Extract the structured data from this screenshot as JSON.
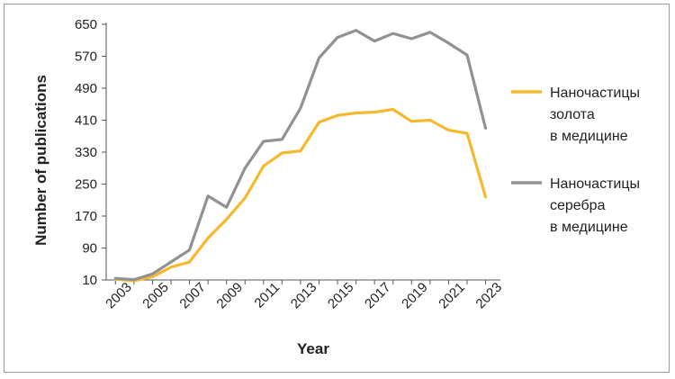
{
  "chart_data": {
    "type": "line",
    "title": "",
    "xlabel": "Year",
    "ylabel": "Number of publications",
    "x": [
      2003,
      2004,
      2005,
      2006,
      2007,
      2008,
      2009,
      2010,
      2011,
      2012,
      2013,
      2014,
      2015,
      2016,
      2017,
      2018,
      2019,
      2020,
      2021,
      2022,
      2023
    ],
    "x_tick_labels": [
      "2003",
      "2005",
      "2007",
      "2009",
      "2011",
      "2013",
      "2015",
      "2017",
      "2019",
      "2021",
      "2023"
    ],
    "y_ticks": [
      10,
      90,
      170,
      250,
      330,
      410,
      490,
      570,
      650
    ],
    "ylim": [
      10,
      650
    ],
    "xlim": [
      2002.5,
      2023.8
    ],
    "grid": false,
    "legend_position": "right",
    "series": [
      {
        "name": "Наночастицы золота в медицине",
        "legend_lines": [
          "Наночастицы",
          "золота",
          "в медицине"
        ],
        "color": "#f5b82e",
        "values": [
          12,
          8,
          18,
          42,
          55,
          115,
          162,
          215,
          295,
          328,
          333,
          405,
          422,
          428,
          430,
          437,
          407,
          410,
          385,
          377,
          218
        ]
      },
      {
        "name": "Наночастицы серебра в медицине",
        "legend_lines": [
          "Наночастицы",
          "серебра",
          "в медицине"
        ],
        "color": "#8f9294",
        "values": [
          14,
          11,
          25,
          55,
          85,
          220,
          192,
          290,
          357,
          362,
          440,
          566,
          617,
          635,
          608,
          627,
          614,
          630,
          603,
          573,
          390
        ]
      }
    ]
  }
}
